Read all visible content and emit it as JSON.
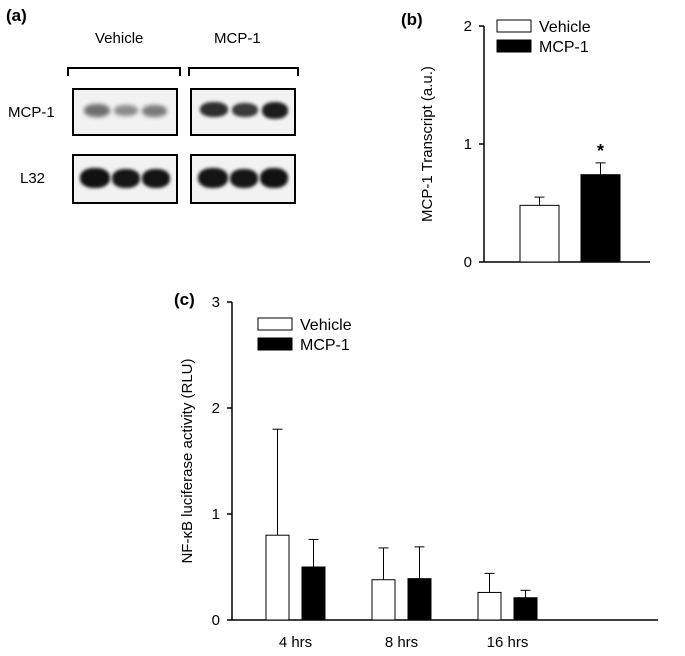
{
  "panel_a": {
    "label": "(a)",
    "group_labels": [
      "Vehicle",
      "MCP-1"
    ],
    "row_labels": [
      "MCP-1",
      "L32"
    ]
  },
  "chart_data": [
    {
      "panel": "(b)",
      "type": "bar",
      "categories": [
        ""
      ],
      "series": [
        {
          "name": "Vehicle",
          "values": [
            0.48
          ],
          "errors": [
            0.07
          ],
          "color": "#ffffff"
        },
        {
          "name": "MCP-1",
          "values": [
            0.74
          ],
          "errors": [
            0.1
          ],
          "color": "#000000"
        }
      ],
      "ylabel": "MCP-1 Transcript  (a.u.)",
      "ylim": [
        0,
        2
      ],
      "yticks": [
        0,
        1,
        2
      ],
      "annotations": [
        "*"
      ],
      "legend": "top-right",
      "grid": false
    },
    {
      "panel": "(c)",
      "type": "bar",
      "categories": [
        "4 hrs",
        "8 hrs",
        "16 hrs"
      ],
      "series": [
        {
          "name": "Vehicle",
          "values": [
            0.8,
            0.38,
            0.26
          ],
          "errors": [
            1.0,
            0.3,
            0.18
          ],
          "color": "#ffffff"
        },
        {
          "name": "MCP-1",
          "values": [
            0.5,
            0.39,
            0.21
          ],
          "errors": [
            0.26,
            0.3,
            0.07
          ],
          "color": "#000000"
        }
      ],
      "ylabel": "NF-κB luciferase activity (RLU)",
      "ylim": [
        0,
        3
      ],
      "yticks": [
        0,
        1,
        2,
        3
      ],
      "legend": "top-left",
      "grid": false
    }
  ]
}
